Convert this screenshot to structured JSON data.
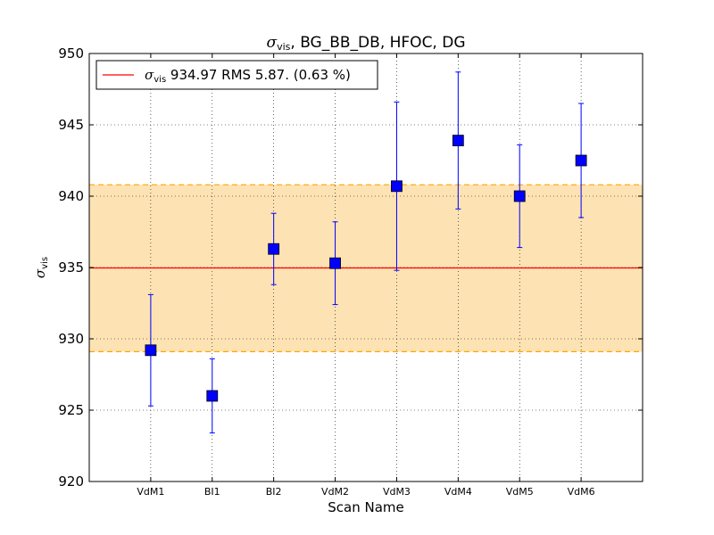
{
  "chart_data": {
    "type": "scatter",
    "title": "σvis, BG_BB_DB, HFOC, DG",
    "title_parts": {
      "symbol": "σ",
      "subscript": "vis",
      "rest": ", BG_BB_DB, HFOC, DG"
    },
    "xlabel": "Scan Name",
    "ylabel": {
      "symbol": "σ",
      "subscript": "vis"
    },
    "categories": [
      "VdM1",
      "BI1",
      "BI2",
      "VdM2",
      "VdM3",
      "VdM4",
      "VdM5",
      "VdM6"
    ],
    "series": [
      {
        "values": [
          929.2,
          926.0,
          936.3,
          935.3,
          940.7,
          943.9,
          940.0,
          942.5
        ],
        "errors": [
          3.9,
          2.6,
          2.5,
          2.9,
          5.9,
          4.8,
          3.6,
          4.0
        ],
        "color": "#0000ff",
        "marker": "square"
      }
    ],
    "mean_line": {
      "value": 934.97,
      "color": "#ff0000"
    },
    "rms_band": {
      "low": 929.1,
      "high": 940.8,
      "fill": "#fde3b3",
      "edge": "#ffa500"
    },
    "legend": {
      "position": "top-left",
      "symbol": "σ",
      "subscript": "vis",
      "text": " 934.97 RMS 5.87. (0.63 %)"
    },
    "ylim": [
      920,
      950
    ],
    "yticks": [
      "920",
      "925",
      "930",
      "935",
      "940",
      "945",
      "950"
    ],
    "grid": true
  }
}
